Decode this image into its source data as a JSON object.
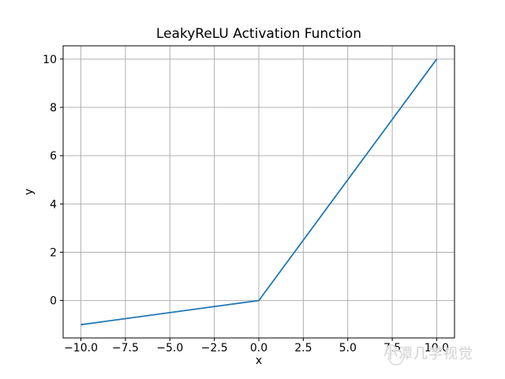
{
  "watermark": {
    "text": "小潭几学视觉"
  },
  "chart_data": {
    "type": "line",
    "title": "LeakyReLU Activation Function",
    "xlabel": "x",
    "ylabel": "y",
    "grid": true,
    "legend": false,
    "xlim": [
      -11,
      11
    ],
    "ylim": [
      -1.55,
      10.55
    ],
    "x_ticks": [
      -10.0,
      -7.5,
      -5.0,
      -2.5,
      0.0,
      2.5,
      5.0,
      7.5,
      10.0
    ],
    "x_tick_labels": [
      "−10.0",
      "−7.5",
      "−5.0",
      "−2.5",
      "0.0",
      "2.5",
      "5.0",
      "7.5",
      "10.0"
    ],
    "y_ticks": [
      0,
      2,
      4,
      6,
      8,
      10
    ],
    "y_tick_labels": [
      "0",
      "2",
      "4",
      "6",
      "8",
      "10"
    ],
    "series": [
      {
        "name": "LeakyReLU",
        "color": "#1f77b4",
        "points": [
          [
            -10,
            -1
          ],
          [
            0,
            0
          ],
          [
            10,
            10
          ]
        ]
      }
    ],
    "style": {
      "grid_color": "#b0b0b0",
      "spine_color": "#000000",
      "tick_color": "#000000",
      "background": "#ffffff"
    }
  }
}
